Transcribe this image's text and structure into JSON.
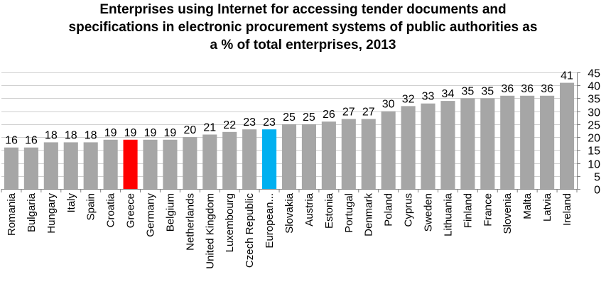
{
  "chart_data": {
    "type": "bar",
    "title_lines": [
      "Enterprises using Internet for accessing tender documents and",
      "specifications in electronic procurement systems of public authorities as",
      "a % of total enterprises, 2013"
    ],
    "categories": [
      "Romania",
      "Bulgaria",
      "Hungary",
      "Italy",
      "Spain",
      "Croatia",
      "Greece",
      "Germany",
      "Belgium",
      "Netherlands",
      "United Kingdom",
      "Luxembourg",
      "Czech Republic",
      "European...",
      "Slovakia",
      "Austria",
      "Estonia",
      "Portugal",
      "Denmark",
      "Poland",
      "Cyprus",
      "Sweden",
      "Lithuania",
      "Finland",
      "France",
      "Slovenia",
      "Malta",
      "Latvia",
      "Ireland"
    ],
    "values": [
      16,
      16,
      18,
      18,
      18,
      19,
      19,
      19,
      19,
      20,
      21,
      22,
      23,
      23,
      25,
      25,
      26,
      27,
      27,
      30,
      32,
      33,
      34,
      35,
      35,
      36,
      36,
      36,
      41
    ],
    "highlight": {
      "Greece": "#ff0000",
      "European...": "#00b0f0"
    },
    "bar_color": "#a6a6a6",
    "ylim": [
      0,
      45
    ],
    "yticks": [
      0,
      5,
      10,
      15,
      20,
      25,
      30,
      35,
      40,
      45
    ],
    "y_axis_side": "right",
    "grid": true,
    "data_labels": true,
    "xlabel": "",
    "ylabel": ""
  }
}
